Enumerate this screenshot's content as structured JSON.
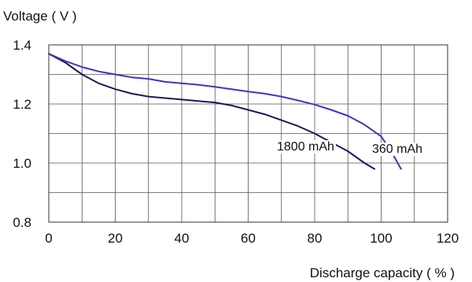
{
  "chart_data": {
    "type": "line",
    "ylabel": "Voltage ( V )",
    "xlabel": "Discharge capacity ( % )",
    "xlim": [
      0,
      120
    ],
    "ylim": [
      0.8,
      1.4
    ],
    "x_ticks": [
      0,
      20,
      40,
      60,
      80,
      100,
      120
    ],
    "x_tick_labels": [
      "0",
      "20",
      "40",
      "60",
      "80",
      "100",
      "120"
    ],
    "y_ticks": [
      0.8,
      1.0,
      1.2,
      1.4
    ],
    "y_tick_labels": [
      "0.8",
      "1.0",
      "1.2",
      "1.4"
    ],
    "grid": true,
    "series": [
      {
        "name": "1800 mAh",
        "color": "#1a1a5c",
        "x": [
          0,
          5,
          10,
          15,
          20,
          25,
          30,
          35,
          40,
          45,
          50,
          55,
          60,
          65,
          70,
          75,
          80,
          85,
          90,
          95,
          98
        ],
        "y": [
          1.37,
          1.34,
          1.3,
          1.27,
          1.25,
          1.235,
          1.225,
          1.22,
          1.215,
          1.21,
          1.205,
          1.195,
          1.18,
          1.165,
          1.145,
          1.125,
          1.1,
          1.07,
          1.04,
          1.0,
          0.98
        ]
      },
      {
        "name": "360 mAh",
        "color": "#3a3ab8",
        "x": [
          0,
          5,
          10,
          15,
          20,
          25,
          30,
          35,
          40,
          45,
          50,
          55,
          60,
          65,
          70,
          75,
          80,
          85,
          90,
          95,
          100,
          103,
          106
        ],
        "y": [
          1.37,
          1.345,
          1.325,
          1.31,
          1.3,
          1.29,
          1.285,
          1.275,
          1.27,
          1.265,
          1.258,
          1.25,
          1.242,
          1.235,
          1.225,
          1.212,
          1.198,
          1.18,
          1.16,
          1.13,
          1.09,
          1.04,
          0.98
        ]
      }
    ]
  }
}
